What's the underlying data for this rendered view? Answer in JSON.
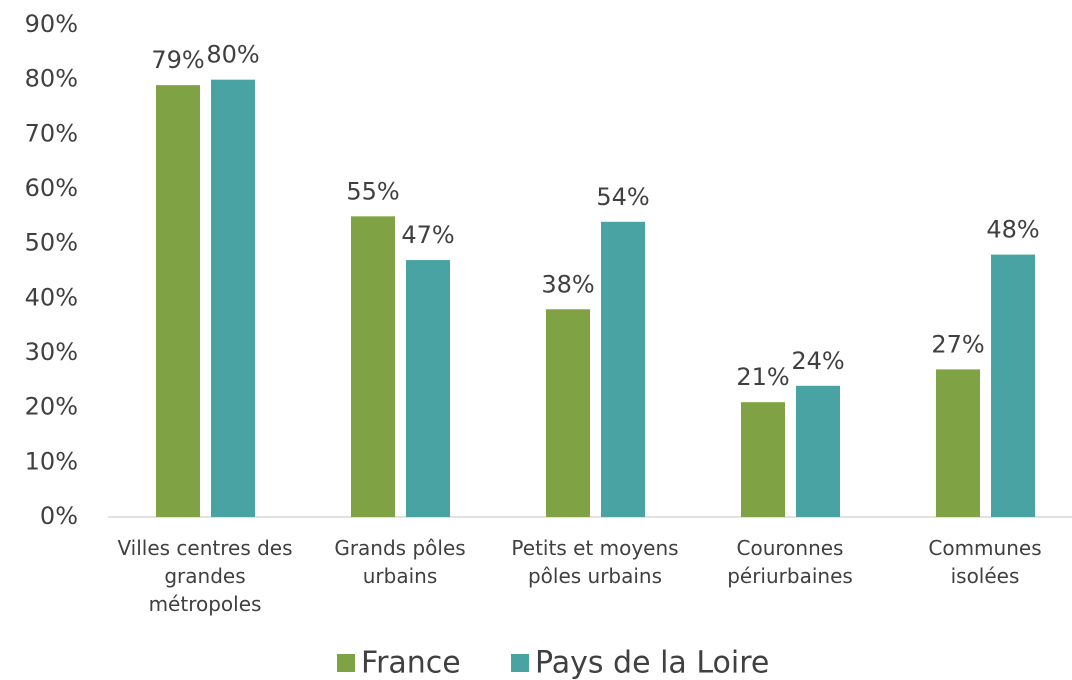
{
  "chart_data": {
    "type": "bar",
    "categories": [
      "Villes centres des grandes métropoles",
      "Grands pôles urbains",
      "Petits et moyens pôles urbains",
      "Couronnes périurbaines",
      "Communes isolées"
    ],
    "series": [
      {
        "name": "France",
        "color": "#7fa244",
        "values": [
          79,
          55,
          38,
          21,
          27
        ],
        "value_labels": [
          "79%",
          "55%",
          "38%",
          "21%",
          "27%"
        ]
      },
      {
        "name": "Pays de la Loire",
        "color": "#48a3a2",
        "values": [
          80,
          47,
          54,
          24,
          48
        ],
        "value_labels": [
          "80%",
          "47%",
          "54%",
          "24%",
          "48%"
        ]
      }
    ],
    "ylim": [
      0,
      90
    ],
    "yticks": [
      {
        "value": 0,
        "label": "0%"
      },
      {
        "value": 10,
        "label": "10%"
      },
      {
        "value": 20,
        "label": "20%"
      },
      {
        "value": 30,
        "label": "30%"
      },
      {
        "value": 40,
        "label": "40%"
      },
      {
        "value": 50,
        "label": "50%"
      },
      {
        "value": 60,
        "label": "60%"
      },
      {
        "value": 70,
        "label": "70%"
      },
      {
        "value": 80,
        "label": "80%"
      },
      {
        "value": 90,
        "label": "90%"
      }
    ],
    "grid": false,
    "legend": "bottom"
  }
}
